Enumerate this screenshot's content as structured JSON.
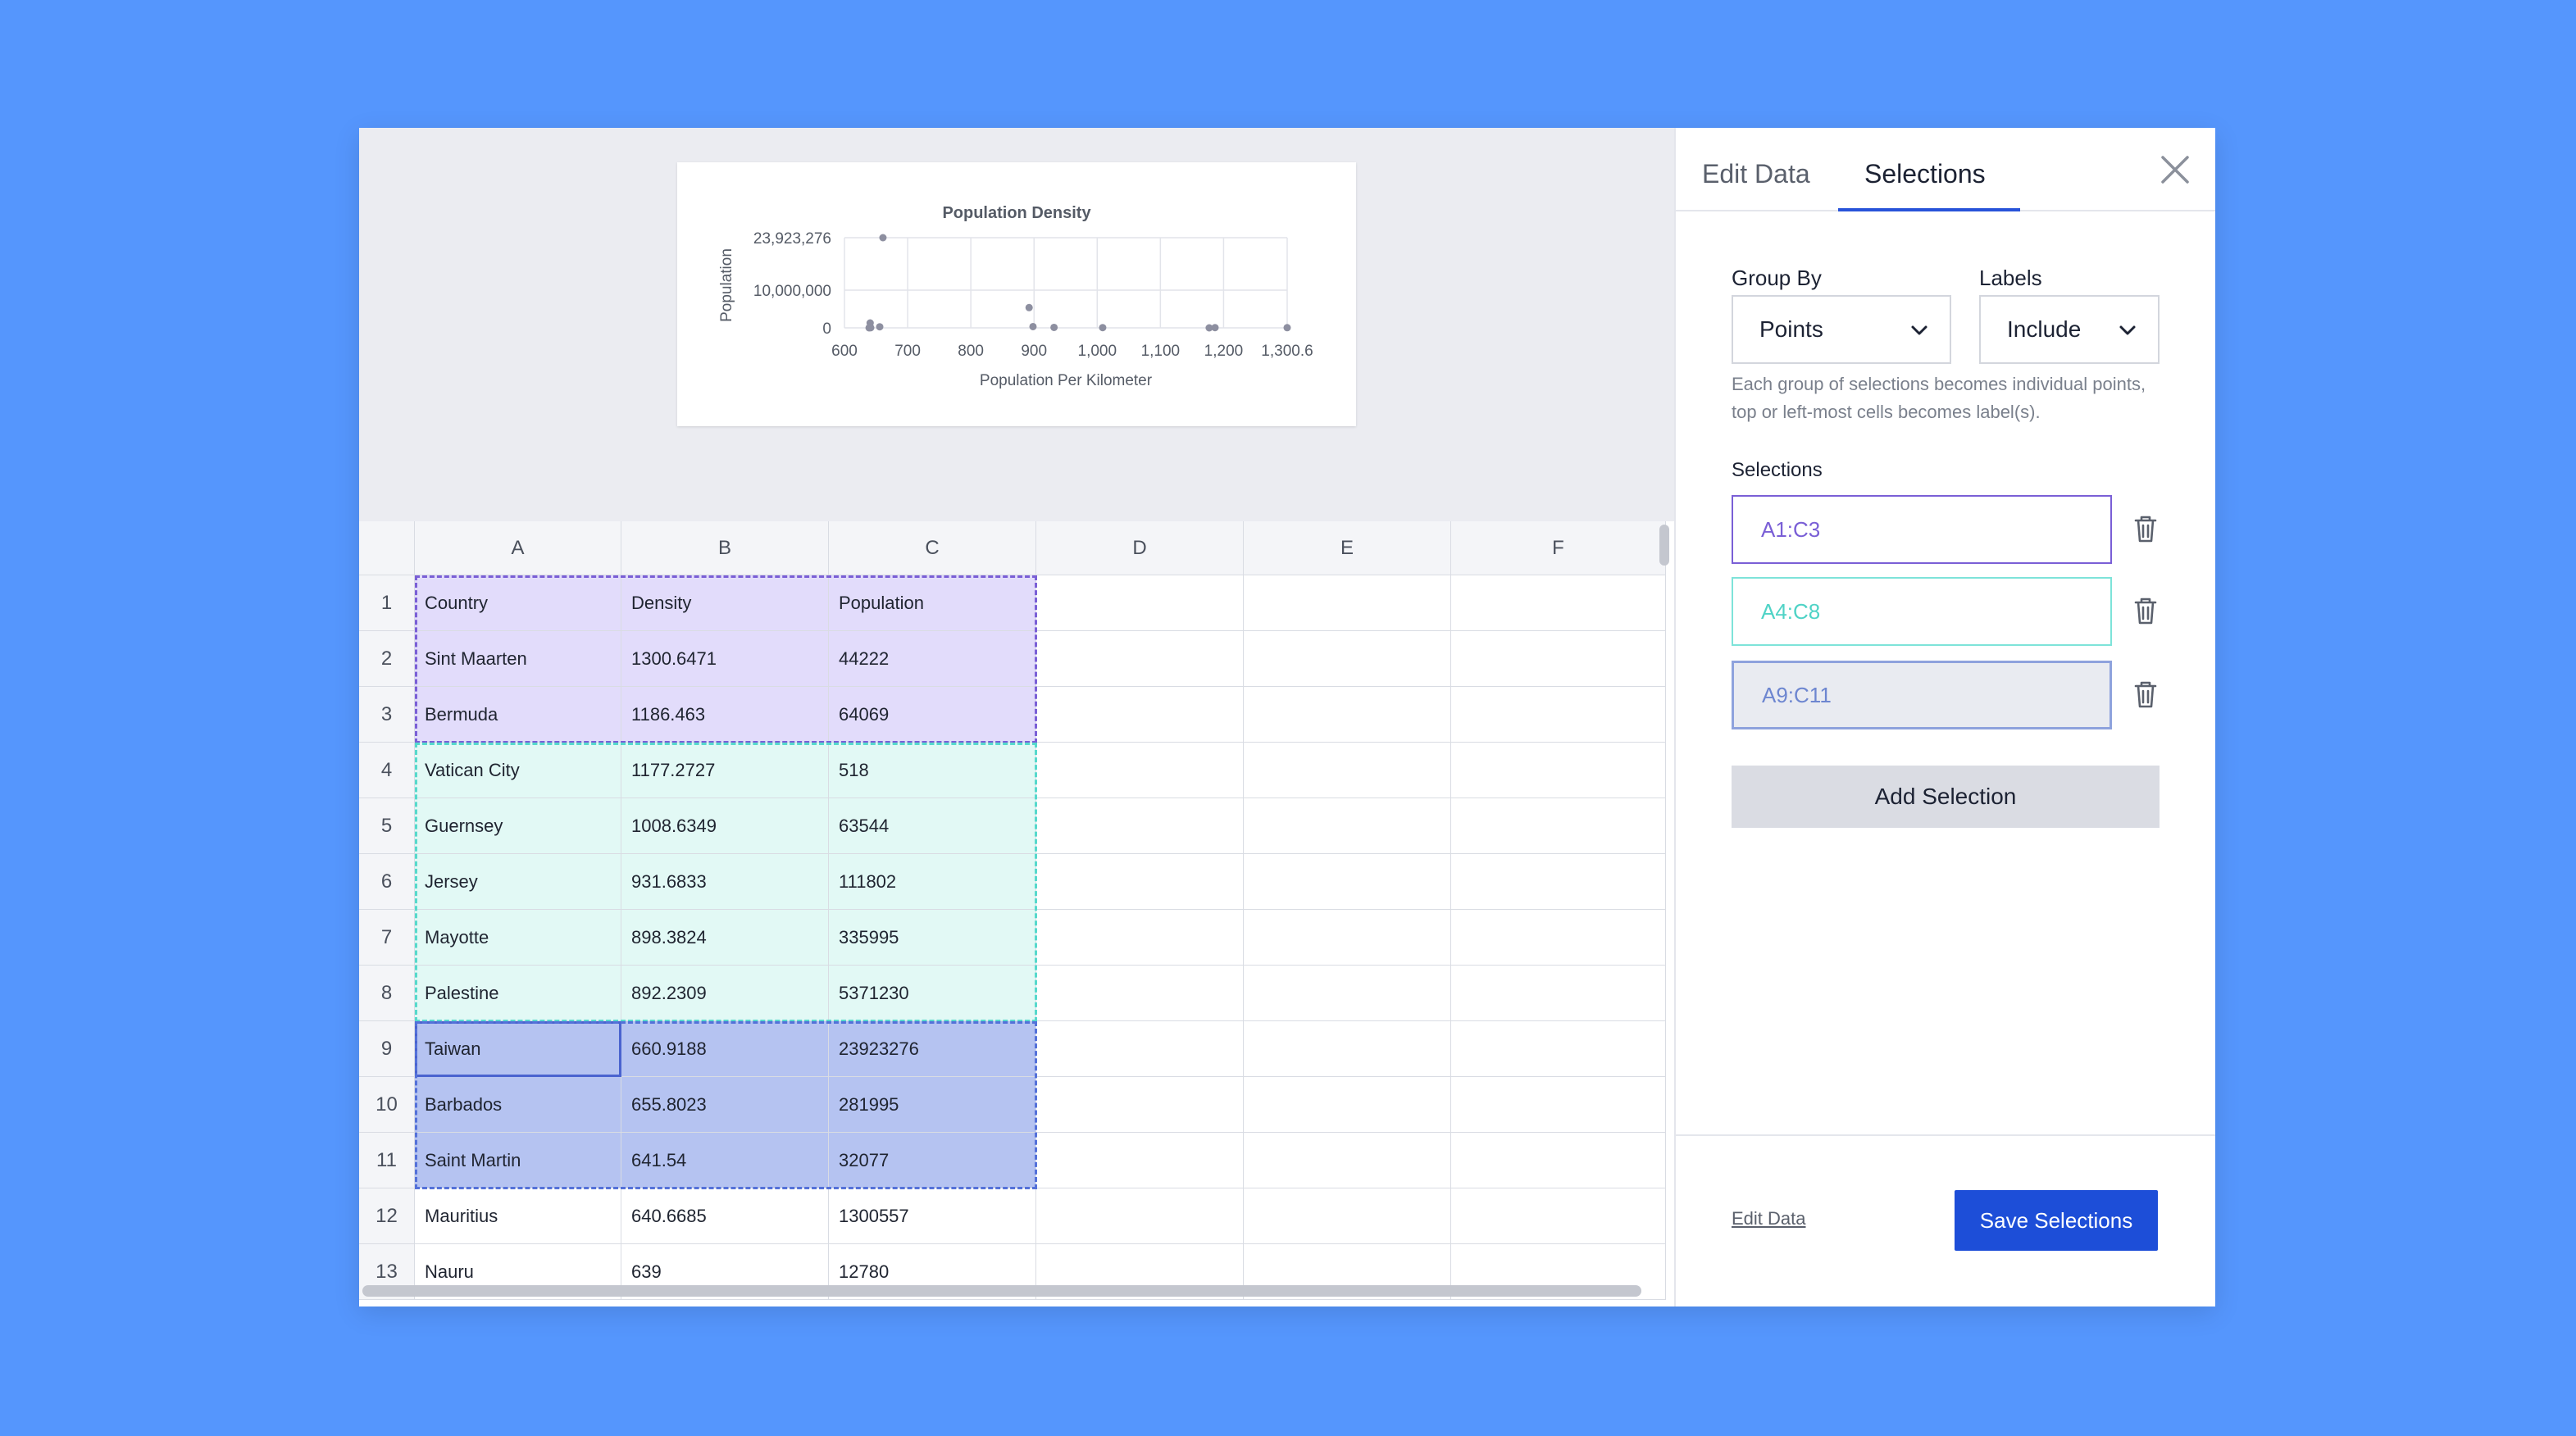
{
  "chart_data": {
    "type": "scatter",
    "title": "Population Density",
    "xlabel": "Population Per Kilometer",
    "ylabel": "Population",
    "xlim": [
      600,
      1300.6471
    ],
    "ylim": [
      0,
      23923276
    ],
    "x_tick_labels": [
      "600",
      "700",
      "800",
      "900",
      "1,000",
      "1,100",
      "1,200",
      "1,300.6"
    ],
    "y_tick_labels": [
      "23,923,276",
      "10,000,000",
      "0"
    ],
    "points": [
      {
        "x": 639,
        "y": 12780
      },
      {
        "x": 640.6685,
        "y": 1300557
      },
      {
        "x": 641.54,
        "y": 32077
      },
      {
        "x": 655.8023,
        "y": 281995
      },
      {
        "x": 660.9188,
        "y": 23923276
      },
      {
        "x": 892.2309,
        "y": 5371230
      },
      {
        "x": 898.3824,
        "y": 335995
      },
      {
        "x": 931.6833,
        "y": 111802
      },
      {
        "x": 1008.6349,
        "y": 63544
      },
      {
        "x": 1177.2727,
        "y": 518
      },
      {
        "x": 1186.463,
        "y": 64069
      },
      {
        "x": 1300.6471,
        "y": 44222
      }
    ],
    "grid": true,
    "point_color": "#8d8fa0"
  },
  "sheet": {
    "columns": [
      "A",
      "B",
      "C",
      "D",
      "E",
      "F"
    ],
    "rows": [
      {
        "num": "1",
        "cells": [
          "Country",
          "Density",
          "Population"
        ]
      },
      {
        "num": "2",
        "cells": [
          "Sint Maarten",
          "1300.6471",
          "44222"
        ]
      },
      {
        "num": "3",
        "cells": [
          "Bermuda",
          "1186.463",
          "64069"
        ]
      },
      {
        "num": "4",
        "cells": [
          "Vatican City",
          "1177.2727",
          "518"
        ]
      },
      {
        "num": "5",
        "cells": [
          "Guernsey",
          "1008.6349",
          "63544"
        ]
      },
      {
        "num": "6",
        "cells": [
          "Jersey",
          "931.6833",
          "111802"
        ]
      },
      {
        "num": "7",
        "cells": [
          "Mayotte",
          "898.3824",
          "335995"
        ]
      },
      {
        "num": "8",
        "cells": [
          "Palestine",
          "892.2309",
          "5371230"
        ]
      },
      {
        "num": "9",
        "cells": [
          "Taiwan",
          "660.9188",
          "23923276"
        ]
      },
      {
        "num": "10",
        "cells": [
          "Barbados",
          "655.8023",
          "281995"
        ]
      },
      {
        "num": "11",
        "cells": [
          "Saint Martin",
          "641.54",
          "32077"
        ]
      },
      {
        "num": "12",
        "cells": [
          "Mauritius",
          "640.6685",
          "1300557"
        ]
      },
      {
        "num": "13",
        "cells": [
          "Nauru",
          "639",
          "12780"
        ]
      }
    ]
  },
  "selection_colors": {
    "a": {
      "fill": "#e2dcfb",
      "border": "#7a5fd6"
    },
    "b": {
      "fill": "#e2f9f5",
      "border": "#56d9cc"
    },
    "c": {
      "fill": "#b5c3f1",
      "border": "#5471d9"
    }
  },
  "panel": {
    "tabs": {
      "edit": "Edit Data",
      "selections": "Selections"
    },
    "group_by": {
      "label": "Group By",
      "value": "Points"
    },
    "labels": {
      "label": "Labels",
      "value": "Include"
    },
    "help": "Each group of selections becomes individual points, top or left-most cells becomes label(s).",
    "selections_label": "Selections",
    "ranges": [
      "A1:C3",
      "A4:C8",
      "A9:C11"
    ],
    "add_button": "Add Selection",
    "edit_link": "Edit Data",
    "save_button": "Save Selections"
  }
}
